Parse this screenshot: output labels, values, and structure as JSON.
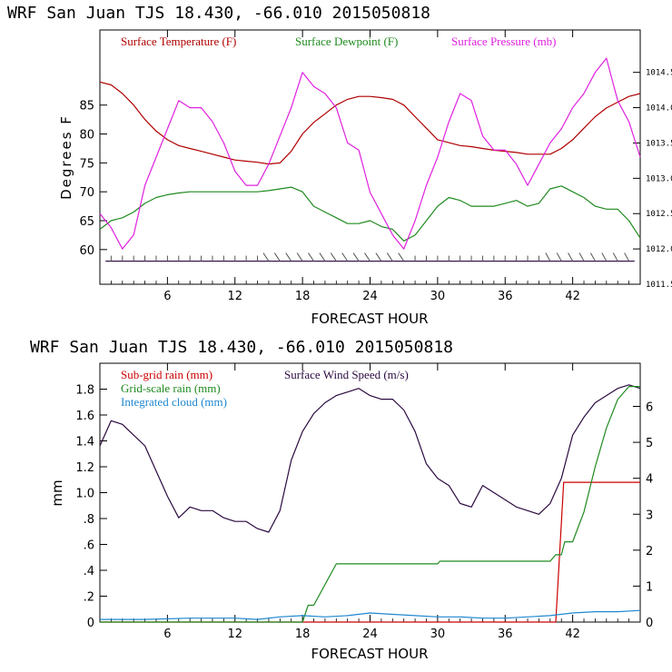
{
  "colors": {
    "temperature": "#b00000",
    "dewpoint": "#1f8a1f",
    "pressure": "#e020e0",
    "wind": "#2a0a40",
    "subgrid": "#cc0000",
    "gridscale": "#1f8a1f",
    "cloud": "#1e88d0",
    "axis": "#000000"
  },
  "chart_data": [
    {
      "type": "line",
      "title": "WRF  San Juan TJS  18.430, -66.010  2015050818",
      "xlabel": "FORECAST HOUR",
      "ylabel": "Degrees F",
      "xlim": [
        0,
        48
      ],
      "ylim": [
        54,
        98
      ],
      "y2lim": [
        1011.5,
        1015.1
      ],
      "xticks": [
        6,
        12,
        18,
        24,
        30,
        36,
        42
      ],
      "xtick_labels": [
        "6",
        "12",
        "18",
        "24",
        "30",
        "36",
        "42"
      ],
      "yticks": [
        60,
        65,
        70,
        75,
        80,
        85
      ],
      "ytick_labels": [
        "60",
        "65",
        "70",
        "75",
        "80",
        "85"
      ],
      "y2ticks": [
        1011.5,
        1012.0,
        1012.5,
        1013.0,
        1013.5,
        1014.0,
        1014.5
      ],
      "y2tick_labels": [
        "1011.5",
        "1012.0",
        "1012.5",
        "1013.0",
        "1013.5",
        "1014.0",
        "1014.5"
      ],
      "legend": [
        "Surface Temperature (F)",
        "Surface Dewpoint (F)",
        "Surface Pressure (mb)"
      ],
      "series": [
        {
          "name": "Surface Temperature (F)",
          "axis": "left",
          "x": [
            0,
            1,
            2,
            3,
            4,
            5,
            6,
            7,
            8,
            9,
            10,
            11,
            12,
            13,
            14,
            15,
            16,
            17,
            18,
            19,
            20,
            21,
            22,
            23,
            24,
            25,
            26,
            27,
            28,
            29,
            30,
            31,
            32,
            33,
            34,
            35,
            36,
            37,
            38,
            39,
            40,
            41,
            42,
            43,
            44,
            45,
            46,
            47,
            48
          ],
          "y": [
            89,
            88.5,
            87,
            85,
            82.5,
            80.5,
            79,
            78,
            77.5,
            77,
            76.5,
            76,
            75.5,
            75.3,
            75.1,
            74.8,
            75,
            77,
            80,
            82,
            83.5,
            85,
            86,
            86.5,
            86.5,
            86.3,
            86,
            85,
            83,
            81,
            79,
            78.5,
            78,
            77.8,
            77.5,
            77.2,
            77,
            76.8,
            76.5,
            76.5,
            76.5,
            77.5,
            79,
            81,
            83,
            84.5,
            85.5,
            86.5,
            87
          ]
        },
        {
          "name": "Surface Dewpoint (F)",
          "axis": "left",
          "x": [
            0,
            1,
            2,
            3,
            4,
            5,
            6,
            7,
            8,
            9,
            10,
            11,
            12,
            13,
            14,
            15,
            16,
            17,
            18,
            19,
            20,
            21,
            22,
            23,
            24,
            25,
            26,
            27,
            28,
            29,
            30,
            31,
            32,
            33,
            34,
            35,
            36,
            37,
            38,
            39,
            40,
            41,
            42,
            43,
            44,
            45,
            46,
            47,
            48
          ],
          "y": [
            63.5,
            65,
            65.5,
            66.5,
            68,
            69,
            69.5,
            69.8,
            70,
            70,
            70,
            70,
            70,
            70,
            70,
            70.2,
            70.5,
            70.8,
            70,
            67.5,
            66.5,
            65.5,
            64.5,
            64.5,
            65,
            64,
            63.5,
            61.5,
            62.5,
            65,
            67.5,
            69,
            68.5,
            67.5,
            67.5,
            67.5,
            68,
            68.5,
            67.5,
            68,
            70.5,
            71,
            70,
            69,
            67.5,
            67,
            67,
            65,
            62
          ]
        },
        {
          "name": "Surface Pressure (mb)",
          "axis": "right",
          "x": [
            0,
            1,
            2,
            3,
            4,
            5,
            6,
            7,
            8,
            9,
            10,
            11,
            12,
            13,
            14,
            15,
            16,
            17,
            18,
            19,
            20,
            21,
            22,
            23,
            24,
            25,
            26,
            27,
            28,
            29,
            30,
            31,
            32,
            33,
            34,
            35,
            36,
            37,
            38,
            39,
            40,
            41,
            42,
            43,
            44,
            45,
            46,
            47,
            48
          ],
          "y": [
            1012.5,
            1012.3,
            1012.0,
            1012.2,
            1012.9,
            1013.3,
            1013.7,
            1014.1,
            1014.0,
            1014.0,
            1013.8,
            1013.5,
            1013.1,
            1012.9,
            1012.9,
            1013.2,
            1013.6,
            1014.0,
            1014.5,
            1014.3,
            1014.2,
            1014.0,
            1013.5,
            1013.4,
            1012.8,
            1012.5,
            1012.2,
            1012.0,
            1012.4,
            1012.9,
            1013.3,
            1013.8,
            1014.2,
            1014.1,
            1013.6,
            1013.4,
            1013.4,
            1013.2,
            1012.9,
            1013.2,
            1013.5,
            1013.7,
            1014.0,
            1014.2,
            1014.5,
            1014.7,
            1014.1,
            1013.8,
            1013.3
          ]
        }
      ],
      "wind_barbs_level": 58
    },
    {
      "type": "line",
      "title": "WRF  San Juan TJS  18.430, -66.010  2015050818",
      "xlabel": "FORECAST HOUR",
      "ylabel": "mm",
      "xlim": [
        0,
        48
      ],
      "ylim": [
        0,
        2.0
      ],
      "y2lim": [
        0,
        7.2
      ],
      "xticks": [
        6,
        12,
        18,
        24,
        30,
        36,
        42
      ],
      "xtick_labels": [
        "6",
        "12",
        "18",
        "24",
        "30",
        "36",
        "42"
      ],
      "yticks": [
        0,
        0.2,
        0.4,
        0.6,
        0.8,
        1.0,
        1.2,
        1.4,
        1.6,
        1.8
      ],
      "ytick_labels": [
        "0",
        ".2",
        ".4",
        ".6",
        ".8",
        "1.0",
        "1.2",
        "1.4",
        "1.6",
        "1.8"
      ],
      "y2ticks": [
        0,
        1,
        2,
        3,
        4,
        5,
        6
      ],
      "y2tick_labels": [
        "0",
        "1",
        "2",
        "3",
        "4",
        "5",
        "6"
      ],
      "legend": [
        "Sub-grid rain (mm)",
        "Grid-scale rain (mm)",
        "Integrated cloud (mm)",
        "Surface Wind Speed (m/s)"
      ],
      "series": [
        {
          "name": "Surface Wind Speed (m/s)",
          "axis": "right",
          "x": [
            0,
            1,
            2,
            3,
            4,
            5,
            6,
            7,
            8,
            9,
            10,
            11,
            12,
            13,
            14,
            15,
            16,
            17,
            18,
            19,
            20,
            21,
            22,
            23,
            24,
            25,
            26,
            27,
            28,
            29,
            30,
            31,
            32,
            33,
            34,
            35,
            36,
            37,
            38,
            39,
            40,
            41,
            42,
            43,
            44,
            45,
            46,
            47,
            48
          ],
          "y": [
            4.9,
            5.6,
            5.5,
            5.2,
            4.9,
            4.2,
            3.5,
            2.9,
            3.2,
            3.1,
            3.1,
            2.9,
            2.8,
            2.8,
            2.6,
            2.5,
            3.1,
            4.5,
            5.3,
            5.8,
            6.1,
            6.3,
            6.4,
            6.5,
            6.3,
            6.2,
            6.2,
            5.9,
            5.3,
            4.4,
            4.0,
            3.8,
            3.3,
            3.2,
            3.8,
            3.6,
            3.4,
            3.2,
            3.1,
            3.0,
            3.3,
            4.0,
            5.2,
            5.7,
            6.1,
            6.3,
            6.5,
            6.6,
            6.5
          ]
        },
        {
          "name": "Sub-grid rain (mm)",
          "axis": "left",
          "x": [
            0,
            40.5,
            41.2,
            48
          ],
          "y": [
            0,
            0,
            1.08,
            1.08
          ]
        },
        {
          "name": "Grid-scale rain (mm)",
          "axis": "left",
          "x": [
            0,
            18,
            18.5,
            19,
            21,
            30,
            30.2,
            40,
            40.5,
            41,
            41.3,
            42,
            43,
            44,
            45,
            46,
            47,
            48
          ],
          "y": [
            0,
            0,
            0.13,
            0.13,
            0.45,
            0.45,
            0.47,
            0.47,
            0.52,
            0.52,
            0.62,
            0.62,
            0.85,
            1.2,
            1.5,
            1.72,
            1.82,
            1.82
          ]
        },
        {
          "name": "Integrated cloud (mm)",
          "axis": "left",
          "x": [
            0,
            4,
            8,
            12,
            14,
            16,
            18,
            20,
            22,
            24,
            26,
            28,
            30,
            32,
            34,
            36,
            38,
            40,
            42,
            44,
            46,
            48
          ],
          "y": [
            0.02,
            0.02,
            0.03,
            0.03,
            0.02,
            0.04,
            0.05,
            0.04,
            0.05,
            0.07,
            0.06,
            0.05,
            0.04,
            0.04,
            0.03,
            0.03,
            0.04,
            0.05,
            0.07,
            0.08,
            0.08,
            0.09
          ]
        }
      ]
    }
  ]
}
